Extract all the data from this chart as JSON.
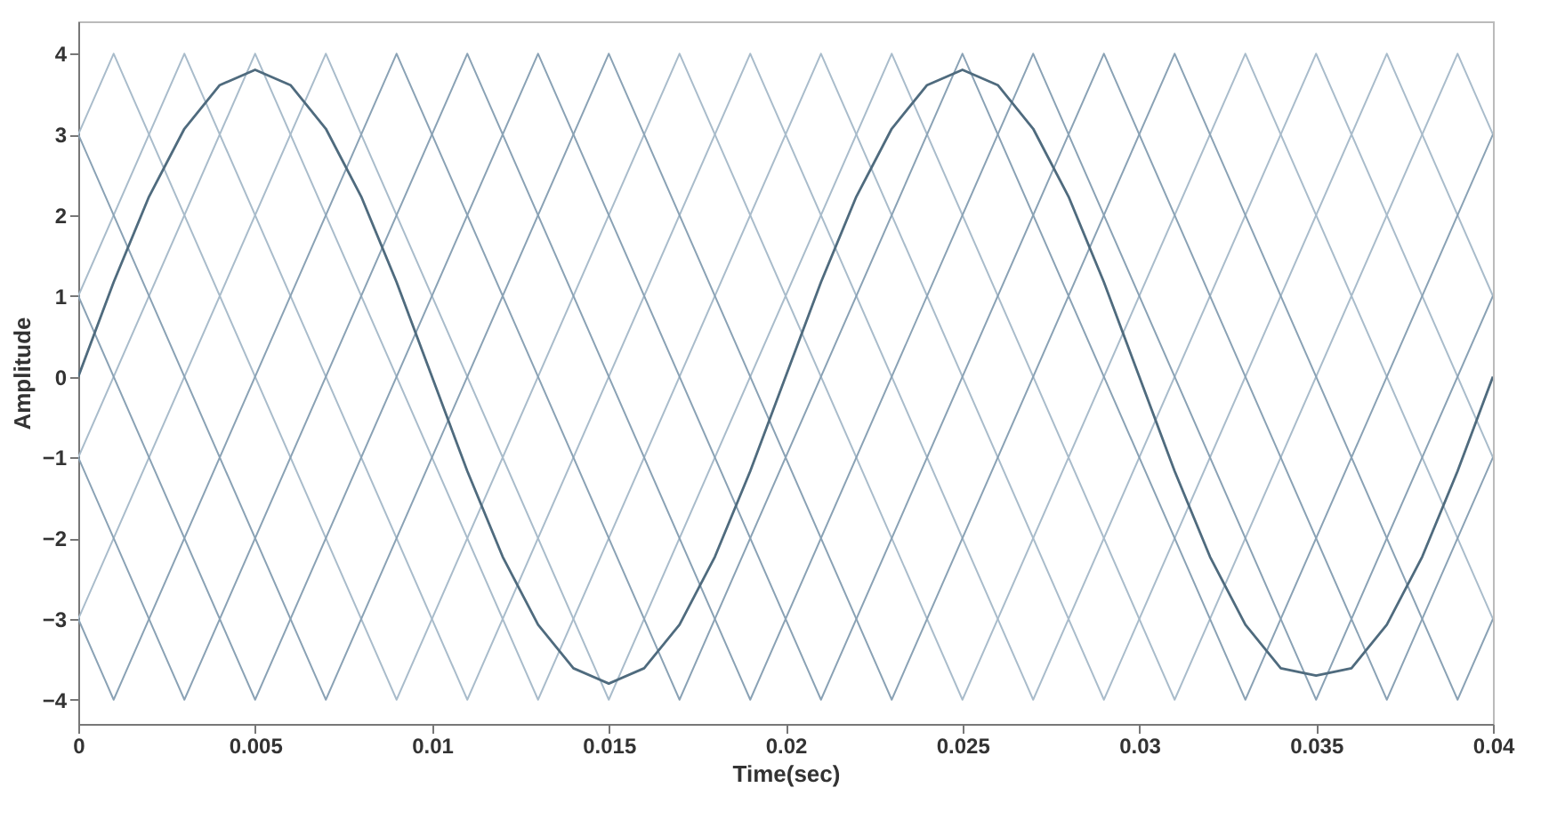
{
  "chart_data": {
    "type": "line",
    "xlabel": "Time(sec)",
    "ylabel": "Amplitude",
    "xlim": [
      0,
      0.04
    ],
    "ylim": [
      -4.3,
      4.4
    ],
    "xticks": [
      0,
      0.005,
      0.01,
      0.015,
      0.02,
      0.025,
      0.03,
      0.035,
      0.04
    ],
    "yticks": [
      -4,
      -3,
      -2,
      -1,
      0,
      1,
      2,
      3,
      4
    ],
    "grid": false,
    "series": [
      {
        "color": "#a9bccb",
        "x": [
          0,
          0.001,
          0.009,
          0.017,
          0.025,
          0.033,
          0.04
        ],
        "values": [
          3,
          4,
          -4,
          4,
          -4,
          4,
          -3
        ]
      },
      {
        "color": "#a9bccb",
        "x": [
          0,
          0.003,
          0.011,
          0.019,
          0.027,
          0.035,
          0.04
        ],
        "values": [
          1,
          4,
          -4,
          4,
          -4,
          4,
          -1
        ]
      },
      {
        "color": "#a9bccb",
        "x": [
          0,
          0.005,
          0.013,
          0.021,
          0.029,
          0.037,
          0.04
        ],
        "values": [
          -1,
          4,
          -4,
          4,
          -4,
          4,
          1
        ]
      },
      {
        "color": "#a9bccb",
        "x": [
          0,
          0.007,
          0.015,
          0.023,
          0.031,
          0.039,
          0.04
        ],
        "values": [
          -3,
          4,
          -4,
          4,
          -4,
          4,
          3
        ]
      },
      {
        "color": "#8aa2b5",
        "x": [
          0,
          0.001,
          0.009,
          0.017,
          0.025,
          0.033,
          0.04
        ],
        "values": [
          -3,
          -4,
          4,
          -4,
          4,
          -4,
          3
        ]
      },
      {
        "color": "#8aa2b5",
        "x": [
          0,
          0.003,
          0.011,
          0.019,
          0.027,
          0.035,
          0.04
        ],
        "values": [
          -1,
          -4,
          4,
          -4,
          4,
          -4,
          1
        ]
      },
      {
        "color": "#8aa2b5",
        "x": [
          0,
          0.005,
          0.013,
          0.021,
          0.029,
          0.037,
          0.04
        ],
        "values": [
          1,
          -4,
          4,
          -4,
          4,
          -4,
          -1
        ]
      },
      {
        "color": "#8aa2b5",
        "x": [
          0,
          0.007,
          0.015,
          0.023,
          0.031,
          0.039,
          0.04
        ],
        "values": [
          3,
          -4,
          4,
          -4,
          4,
          -4,
          -3
        ]
      },
      {
        "color": "#4f6b7e",
        "x": [
          0,
          0.001,
          0.002,
          0.003,
          0.004,
          0.005,
          0.006,
          0.007,
          0.008,
          0.009,
          0.01,
          0.011,
          0.012,
          0.013,
          0.014,
          0.015,
          0.016,
          0.017,
          0.018,
          0.019,
          0.02,
          0.021,
          0.022,
          0.023,
          0.024,
          0.025,
          0.026,
          0.027,
          0.028,
          0.029,
          0.03,
          0.031,
          0.032,
          0.033,
          0.034,
          0.035,
          0.036,
          0.037,
          0.038,
          0.039,
          0.04
        ],
        "values": [
          0,
          1.17,
          2.23,
          3.07,
          3.61,
          3.8,
          3.61,
          3.07,
          2.23,
          1.17,
          0,
          -1.17,
          -2.23,
          -3.07,
          -3.61,
          -3.8,
          -3.61,
          -3.07,
          -2.23,
          -1.17,
          0,
          1.17,
          2.23,
          3.07,
          3.61,
          3.8,
          3.61,
          3.07,
          2.23,
          1.17,
          0,
          -1.17,
          -2.23,
          -3.07,
          -3.61,
          -3.7,
          -3.61,
          -3.07,
          -2.23,
          -1.17,
          0
        ]
      }
    ]
  }
}
